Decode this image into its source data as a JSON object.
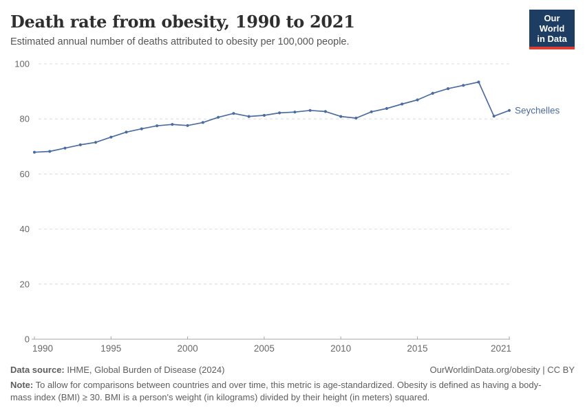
{
  "header": {
    "title": "Death rate from obesity, 1990 to 2021",
    "subtitle": "Estimated annual number of deaths attributed to obesity per 100,000 people.",
    "logo": {
      "line1": "Our World",
      "line2": "in Data",
      "bg_color": "#1d3d63",
      "accent_color": "#dc3c31"
    }
  },
  "chart_data": {
    "type": "line",
    "title": "Death rate from obesity, 1990 to 2021",
    "xlabel": "",
    "ylabel": "",
    "xlim": [
      1990,
      2021
    ],
    "ylim": [
      0,
      100
    ],
    "x_ticks": [
      1990,
      1995,
      2000,
      2005,
      2010,
      2015,
      2021
    ],
    "y_ticks": [
      0,
      20,
      40,
      60,
      80,
      100
    ],
    "grid": "horizontal-dashed",
    "legend_position": "end-of-line-label",
    "series": [
      {
        "name": "Seychelles",
        "color": "#4c6ca0",
        "x": [
          1990,
          1991,
          1992,
          1993,
          1994,
          1995,
          1996,
          1997,
          1998,
          1999,
          2000,
          2001,
          2002,
          2003,
          2004,
          2005,
          2006,
          2007,
          2008,
          2009,
          2010,
          2011,
          2012,
          2013,
          2014,
          2015,
          2016,
          2017,
          2018,
          2019,
          2020,
          2021
        ],
        "values": [
          67.9,
          68.2,
          69.4,
          70.6,
          71.5,
          73.4,
          75.2,
          76.4,
          77.5,
          78.0,
          77.6,
          78.7,
          80.6,
          82.0,
          80.9,
          81.3,
          82.2,
          82.5,
          83.1,
          82.7,
          80.9,
          80.3,
          82.6,
          83.8,
          85.4,
          86.9,
          89.3,
          91.0,
          92.2,
          93.4,
          81.0,
          83.1
        ]
      }
    ],
    "style": {
      "gridline_color": "#dcdcdc",
      "axis_color": "#a5a5a5",
      "tick_label_color": "#676767"
    }
  },
  "footer": {
    "data_source_label": "Data source:",
    "data_source_text": " IHME, Global Burden of Disease (2024)",
    "license_text": "OurWorldinData.org/obesity | CC BY",
    "note_label": "Note:",
    "note_text": " To allow for comparisons between countries and over time, this metric is age-standardized. Obesity is defined as having a body-mass index (BMI) ≥ 30. BMI is a person's weight (in kilograms) divided by their height (in meters) squared."
  }
}
